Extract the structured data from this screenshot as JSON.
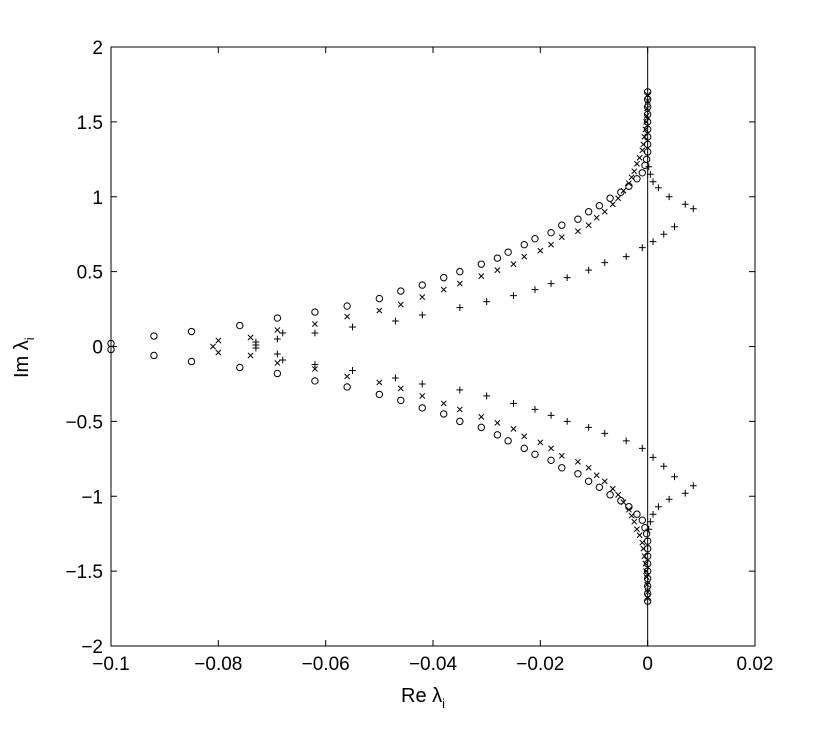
{
  "chart_data": {
    "type": "scatter",
    "xlabel": "Re λ",
    "xlabel_sub": "i",
    "ylabel": "Im λ",
    "ylabel_sub": "i",
    "xlim": [
      -0.1,
      0.02
    ],
    "ylim": [
      -2,
      2
    ],
    "grid": false,
    "x_ticks": [
      -0.1,
      -0.08,
      -0.06,
      -0.04,
      -0.02,
      0,
      0.02
    ],
    "x_tick_labels": [
      "−0.1",
      "−0.08",
      "−0.06",
      "−0.04",
      "−0.02",
      "0",
      "0.02"
    ],
    "y_ticks": [
      -2,
      -1.5,
      -1,
      -0.5,
      0,
      0.5,
      1,
      1.5,
      2
    ],
    "y_tick_labels": [
      "−2",
      "−1.5",
      "−1",
      "−0.5",
      "0",
      "0.5",
      "1",
      "1.5",
      "2"
    ],
    "reference_line": {
      "axis": "x",
      "value": 0
    },
    "series": [
      {
        "marker": "o",
        "points": [
          [
            -0.1,
            0.02
          ],
          [
            -0.092,
            0.07
          ],
          [
            -0.085,
            0.1
          ],
          [
            -0.076,
            0.14
          ],
          [
            -0.069,
            0.19
          ],
          [
            -0.062,
            0.23
          ],
          [
            -0.056,
            0.27
          ],
          [
            -0.05,
            0.32
          ],
          [
            -0.046,
            0.37
          ],
          [
            -0.042,
            0.41
          ],
          [
            -0.038,
            0.46
          ],
          [
            -0.035,
            0.5
          ],
          [
            -0.031,
            0.55
          ],
          [
            -0.028,
            0.59
          ],
          [
            -0.026,
            0.63
          ],
          [
            -0.023,
            0.68
          ],
          [
            -0.021,
            0.72
          ],
          [
            -0.018,
            0.76
          ],
          [
            -0.016,
            0.81
          ],
          [
            -0.013,
            0.85
          ],
          [
            -0.011,
            0.9
          ],
          [
            -0.009,
            0.94
          ],
          [
            -0.007,
            0.99
          ],
          [
            -0.005,
            1.03
          ],
          [
            -0.0035,
            1.07
          ],
          [
            -0.002,
            1.12
          ],
          [
            -0.001,
            1.16
          ],
          [
            -0.0005,
            1.21
          ],
          [
            -0.0002,
            1.25
          ],
          [
            0,
            1.3
          ],
          [
            0,
            1.35
          ],
          [
            0,
            1.4
          ],
          [
            0,
            1.45
          ],
          [
            0,
            1.5
          ],
          [
            0,
            1.55
          ],
          [
            0,
            1.6
          ],
          [
            0,
            1.65
          ],
          [
            0,
            1.7
          ],
          [
            -0.1,
            -0.02
          ],
          [
            -0.092,
            -0.06
          ],
          [
            -0.085,
            -0.1
          ],
          [
            -0.076,
            -0.14
          ],
          [
            -0.069,
            -0.18
          ],
          [
            -0.062,
            -0.23
          ],
          [
            -0.056,
            -0.27
          ],
          [
            -0.05,
            -0.32
          ],
          [
            -0.046,
            -0.36
          ],
          [
            -0.042,
            -0.41
          ],
          [
            -0.038,
            -0.45
          ],
          [
            -0.035,
            -0.5
          ],
          [
            -0.031,
            -0.54
          ],
          [
            -0.028,
            -0.59
          ],
          [
            -0.026,
            -0.63
          ],
          [
            -0.023,
            -0.68
          ],
          [
            -0.021,
            -0.72
          ],
          [
            -0.018,
            -0.76
          ],
          [
            -0.016,
            -0.81
          ],
          [
            -0.013,
            -0.85
          ],
          [
            -0.011,
            -0.9
          ],
          [
            -0.009,
            -0.94
          ],
          [
            -0.007,
            -0.99
          ],
          [
            -0.005,
            -1.03
          ],
          [
            -0.0035,
            -1.07
          ],
          [
            -0.002,
            -1.12
          ],
          [
            -0.001,
            -1.16
          ],
          [
            -0.0005,
            -1.21
          ],
          [
            -0.0002,
            -1.25
          ],
          [
            0,
            -1.3
          ],
          [
            0,
            -1.35
          ],
          [
            0,
            -1.4
          ],
          [
            0,
            -1.45
          ],
          [
            0,
            -1.5
          ],
          [
            0,
            -1.55
          ],
          [
            0,
            -1.6
          ],
          [
            0,
            -1.65
          ],
          [
            0,
            -1.7
          ]
        ]
      },
      {
        "marker": "x",
        "points": [
          [
            -0.081,
            0.0
          ],
          [
            -0.08,
            0.04
          ],
          [
            -0.074,
            0.06
          ],
          [
            -0.069,
            0.11
          ],
          [
            -0.062,
            0.15
          ],
          [
            -0.056,
            0.2
          ],
          [
            -0.05,
            0.24
          ],
          [
            -0.046,
            0.28
          ],
          [
            -0.042,
            0.33
          ],
          [
            -0.038,
            0.38
          ],
          [
            -0.035,
            0.42
          ],
          [
            -0.031,
            0.47
          ],
          [
            -0.028,
            0.51
          ],
          [
            -0.025,
            0.55
          ],
          [
            -0.023,
            0.6
          ],
          [
            -0.02,
            0.64
          ],
          [
            -0.018,
            0.68
          ],
          [
            -0.016,
            0.73
          ],
          [
            -0.013,
            0.77
          ],
          [
            -0.011,
            0.81
          ],
          [
            -0.0095,
            0.86
          ],
          [
            -0.008,
            0.9
          ],
          [
            -0.0065,
            0.95
          ],
          [
            -0.0055,
            0.99
          ],
          [
            -0.0045,
            1.04
          ],
          [
            -0.0035,
            1.09
          ],
          [
            -0.003,
            1.13
          ],
          [
            -0.0025,
            1.17
          ],
          [
            -0.002,
            1.22
          ],
          [
            -0.0015,
            1.26
          ],
          [
            -0.001,
            1.31
          ],
          [
            -0.0008,
            1.35
          ],
          [
            -0.0006,
            1.4
          ],
          [
            -0.0004,
            1.45
          ],
          [
            -0.0003,
            1.5
          ],
          [
            -0.0002,
            1.54
          ],
          [
            -0.0001,
            1.59
          ],
          [
            0,
            1.64
          ],
          [
            0,
            1.68
          ],
          [
            -0.08,
            -0.04
          ],
          [
            -0.074,
            -0.06
          ],
          [
            -0.069,
            -0.11
          ],
          [
            -0.062,
            -0.15
          ],
          [
            -0.056,
            -0.2
          ],
          [
            -0.05,
            -0.24
          ],
          [
            -0.046,
            -0.28
          ],
          [
            -0.042,
            -0.33
          ],
          [
            -0.038,
            -0.38
          ],
          [
            -0.035,
            -0.42
          ],
          [
            -0.031,
            -0.47
          ],
          [
            -0.028,
            -0.51
          ],
          [
            -0.025,
            -0.55
          ],
          [
            -0.023,
            -0.6
          ],
          [
            -0.02,
            -0.64
          ],
          [
            -0.018,
            -0.68
          ],
          [
            -0.016,
            -0.73
          ],
          [
            -0.013,
            -0.77
          ],
          [
            -0.011,
            -0.81
          ],
          [
            -0.0095,
            -0.86
          ],
          [
            -0.008,
            -0.9
          ],
          [
            -0.0065,
            -0.95
          ],
          [
            -0.0055,
            -0.99
          ],
          [
            -0.0045,
            -1.04
          ],
          [
            -0.0035,
            -1.09
          ],
          [
            -0.003,
            -1.13
          ],
          [
            -0.0025,
            -1.17
          ],
          [
            -0.002,
            -1.22
          ],
          [
            -0.0015,
            -1.26
          ],
          [
            -0.001,
            -1.31
          ],
          [
            -0.0008,
            -1.35
          ],
          [
            -0.0006,
            -1.4
          ],
          [
            -0.0004,
            -1.45
          ],
          [
            -0.0003,
            -1.5
          ],
          [
            -0.0002,
            -1.54
          ],
          [
            -0.0001,
            -1.59
          ],
          [
            0,
            -1.64
          ],
          [
            0,
            -1.68
          ]
        ]
      },
      {
        "marker": "+",
        "points": [
          [
            -0.073,
            0.01
          ],
          [
            -0.073,
            0.03
          ],
          [
            -0.069,
            0.05
          ],
          [
            -0.068,
            0.09
          ],
          [
            -0.062,
            0.09
          ],
          [
            -0.055,
            0.13
          ],
          [
            -0.047,
            0.17
          ],
          [
            -0.042,
            0.21
          ],
          [
            -0.035,
            0.26
          ],
          [
            -0.03,
            0.3
          ],
          [
            -0.025,
            0.34
          ],
          [
            -0.021,
            0.38
          ],
          [
            -0.018,
            0.42
          ],
          [
            -0.015,
            0.46
          ],
          [
            -0.011,
            0.51
          ],
          [
            -0.008,
            0.56
          ],
          [
            -0.004,
            0.6
          ],
          [
            -0.001,
            0.66
          ],
          [
            0.001,
            0.7
          ],
          [
            0.003,
            0.75
          ],
          [
            0.005,
            0.8
          ],
          [
            0.0085,
            0.92
          ],
          [
            0.007,
            0.95
          ],
          [
            0.004,
            1.0
          ],
          [
            0.002,
            1.06
          ],
          [
            0.001,
            1.1
          ],
          [
            0.0005,
            1.15
          ],
          [
            0.0002,
            1.2
          ],
          [
            -0.073,
            -0.01
          ],
          [
            -0.069,
            -0.05
          ],
          [
            -0.068,
            -0.09
          ],
          [
            -0.062,
            -0.12
          ],
          [
            -0.055,
            -0.16
          ],
          [
            -0.047,
            -0.21
          ],
          [
            -0.042,
            -0.25
          ],
          [
            -0.035,
            -0.29
          ],
          [
            -0.03,
            -0.33
          ],
          [
            -0.025,
            -0.38
          ],
          [
            -0.021,
            -0.42
          ],
          [
            -0.018,
            -0.46
          ],
          [
            -0.015,
            -0.5
          ],
          [
            -0.011,
            -0.54
          ],
          [
            -0.008,
            -0.58
          ],
          [
            -0.004,
            -0.63
          ],
          [
            -0.001,
            -0.68
          ],
          [
            0.001,
            -0.74
          ],
          [
            0.003,
            -0.8
          ],
          [
            0.005,
            -0.87
          ],
          [
            0.0085,
            -0.93
          ],
          [
            0.007,
            -0.98
          ],
          [
            0.004,
            -1.02
          ],
          [
            0.002,
            -1.07
          ],
          [
            0.001,
            -1.12
          ],
          [
            0.0005,
            -1.17
          ],
          [
            0.0002,
            -1.22
          ]
        ]
      }
    ]
  }
}
